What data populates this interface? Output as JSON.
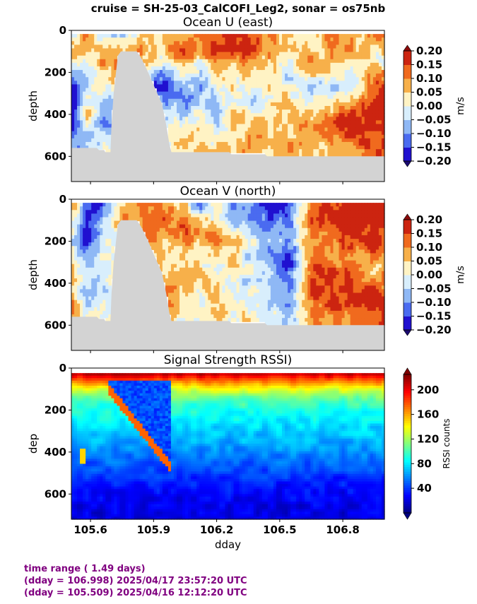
{
  "suptitle": "cruise = SH-25-03_CalCOFI_Leg2,  sonar = os75nb",
  "footer": {
    "line1": "time range ( 1.49 days)",
    "line2": "(dday = 106.998) 2025/04/17 23:57:20 UTC",
    "line3": "(dday = 105.509) 2025/04/16 12:12:20 UTC"
  },
  "colors": {
    "nodata": "#d3d3d3",
    "footer_text": "#800080"
  },
  "chart_data": [
    {
      "type": "heatmap",
      "title": "Ocean U (east)",
      "ylabel": "depth",
      "xlabel": "",
      "xlim": [
        105.509,
        106.998
      ],
      "ylim": [
        720,
        0
      ],
      "yticks": [
        0,
        200,
        400,
        600
      ],
      "xticks": [
        105.6,
        105.9,
        106.2,
        106.5,
        106.8
      ],
      "xtick_labels_visible": false,
      "colorbar": {
        "label": "m/s",
        "levels": [
          -0.2,
          -0.15,
          -0.1,
          -0.05,
          0.0,
          0.05,
          0.1,
          0.15,
          0.2
        ],
        "tick_labels": [
          "0.20",
          "0.15",
          "0.10",
          "0.05",
          "0.00",
          "−0.05",
          "−0.10",
          "−0.15",
          "−0.20"
        ],
        "colors": [
          "#2010d0",
          "#4a6bf0",
          "#8fb8f5",
          "#d8eefc",
          "#fff3c4",
          "#f7b04a",
          "#f06a1e",
          "#cc2410"
        ],
        "extend": "both"
      },
      "columns": [
        [
          105.52,
          0.0,
          0.1,
          0.05,
          -0.1,
          -0.2,
          -0.2,
          -0.15,
          -0.15,
          -0.1,
          -0.1
        ],
        [
          105.58,
          0.1,
          0.05,
          0.0,
          -0.05,
          -0.05,
          0.0,
          0.05,
          0.0,
          -0.05,
          -0.1
        ],
        [
          105.65,
          -0.05,
          0.05,
          0.1,
          0.05,
          0.0,
          -0.05,
          -0.05,
          -0.1,
          -0.05,
          0.0
        ],
        [
          105.75,
          -0.05,
          0.05,
          0.1,
          0.05,
          0.0,
          -0.05,
          -0.05,
          -0.1,
          -0.05,
          0.0
        ],
        [
          105.85,
          0.05,
          0.1,
          0.05,
          -0.05,
          -0.15,
          -0.05,
          0.0,
          0.0,
          0.0,
          0.0
        ],
        [
          105.95,
          0.05,
          0.05,
          0.0,
          -0.1,
          -0.2,
          -0.1,
          -0.05,
          0.0,
          0.0,
          0.0
        ],
        [
          106.05,
          0.1,
          0.15,
          0.1,
          0.05,
          -0.05,
          -0.1,
          -0.05,
          0.0,
          0.05,
          0.05
        ],
        [
          106.12,
          0.1,
          0.1,
          0.0,
          -0.05,
          -0.1,
          -0.05,
          0.0,
          0.05,
          0.05,
          0.05
        ],
        [
          106.2,
          0.15,
          0.2,
          0.1,
          0.05,
          0.0,
          -0.05,
          -0.1,
          -0.05,
          0.0,
          0.05
        ],
        [
          106.28,
          0.2,
          0.15,
          0.05,
          0.0,
          0.05,
          0.0,
          0.05,
          0.05,
          0.0,
          0.05
        ],
        [
          106.35,
          0.15,
          0.2,
          0.1,
          0.05,
          0.0,
          -0.05,
          0.0,
          0.05,
          0.1,
          0.1
        ],
        [
          106.45,
          0.1,
          0.1,
          0.05,
          0.05,
          0.05,
          0.0,
          0.05,
          0.05,
          0.05,
          0.05
        ],
        [
          106.55,
          0.05,
          0.05,
          0.0,
          -0.05,
          0.0,
          0.05,
          0.05,
          0.05,
          0.05,
          0.1
        ],
        [
          106.65,
          0.0,
          0.05,
          0.1,
          0.05,
          -0.05,
          0.0,
          0.05,
          0.1,
          0.05,
          0.05
        ],
        [
          106.75,
          0.15,
          0.1,
          0.05,
          0.0,
          -0.05,
          0.0,
          0.1,
          0.15,
          0.1,
          0.05
        ],
        [
          106.85,
          0.05,
          0.1,
          0.05,
          0.0,
          -0.05,
          0.05,
          0.15,
          0.2,
          0.15,
          0.1
        ],
        [
          106.95,
          0.1,
          0.05,
          0.0,
          0.1,
          0.15,
          0.2,
          0.2,
          0.15,
          0.15,
          0.15
        ]
      ],
      "row_depths": [
        30,
        90,
        150,
        210,
        270,
        330,
        390,
        450,
        510,
        570
      ],
      "nodata_profile": [
        [
          105.509,
          560
        ],
        [
          105.63,
          560
        ],
        [
          105.64,
          570
        ],
        [
          105.665,
          570
        ],
        [
          105.67,
          580
        ],
        [
          105.695,
          580
        ],
        [
          105.7,
          450
        ],
        [
          105.71,
          300
        ],
        [
          105.73,
          120
        ],
        [
          105.745,
          100
        ],
        [
          105.82,
          100
        ],
        [
          105.84,
          130
        ],
        [
          105.87,
          190
        ],
        [
          105.9,
          260
        ],
        [
          105.94,
          350
        ],
        [
          105.96,
          450
        ],
        [
          105.975,
          540
        ],
        [
          105.985,
          580
        ],
        [
          106.26,
          580
        ],
        [
          106.27,
          590
        ],
        [
          106.43,
          590
        ],
        [
          106.44,
          600
        ],
        [
          106.998,
          600
        ]
      ]
    },
    {
      "type": "heatmap",
      "title": "Ocean V (north)",
      "ylabel": "depth",
      "xlabel": "",
      "xlim": [
        105.509,
        106.998
      ],
      "ylim": [
        720,
        0
      ],
      "yticks": [
        0,
        200,
        400,
        600
      ],
      "xticks": [
        105.6,
        105.9,
        106.2,
        106.5,
        106.8
      ],
      "xtick_labels_visible": false,
      "colorbar": {
        "label": "m/s",
        "levels": [
          -0.2,
          -0.15,
          -0.1,
          -0.05,
          0.0,
          0.05,
          0.1,
          0.15,
          0.2
        ],
        "tick_labels": [
          "0.20",
          "0.15",
          "0.10",
          "0.05",
          "0.00",
          "−0.05",
          "−0.10",
          "−0.15",
          "−0.20"
        ],
        "colors": [
          "#2010d0",
          "#4a6bf0",
          "#8fb8f5",
          "#d8eefc",
          "#fff3c4",
          "#f7b04a",
          "#f06a1e",
          "#cc2410"
        ],
        "extend": "both"
      },
      "columns": [
        [
          105.52,
          0.1,
          0.05,
          0.0,
          -0.05,
          0.0,
          0.05,
          0.05,
          0.05,
          0.1,
          0.1
        ],
        [
          105.58,
          -0.15,
          -0.2,
          -0.2,
          -0.15,
          -0.1,
          -0.05,
          -0.05,
          -0.1,
          -0.05,
          0.0
        ],
        [
          105.65,
          -0.15,
          -0.1,
          -0.05,
          0.0,
          0.0,
          0.0,
          0.0,
          -0.05,
          0.0,
          0.0
        ],
        [
          105.75,
          0.05,
          0.1,
          0.05,
          0.0,
          0.0,
          0.0,
          0.0,
          0.0,
          0.0,
          0.0
        ],
        [
          105.85,
          0.15,
          0.1,
          0.1,
          0.1,
          0.05,
          0.1,
          0.05,
          0.0,
          0.0,
          0.0
        ],
        [
          105.95,
          0.1,
          0.15,
          0.1,
          0.05,
          0.05,
          0.05,
          0.1,
          0.1,
          0.1,
          0.1
        ],
        [
          106.05,
          0.05,
          0.1,
          0.15,
          0.1,
          0.05,
          0.05,
          0.1,
          0.05,
          0.0,
          0.0
        ],
        [
          106.12,
          -0.15,
          0.05,
          0.1,
          0.05,
          0.0,
          0.05,
          0.05,
          0.0,
          0.0,
          0.0
        ],
        [
          106.2,
          0.05,
          0.0,
          0.05,
          0.1,
          0.05,
          0.0,
          0.05,
          0.05,
          0.05,
          0.05
        ],
        [
          106.28,
          -0.1,
          -0.05,
          0.0,
          0.05,
          0.05,
          0.05,
          0.0,
          0.0,
          0.0,
          0.0
        ],
        [
          106.35,
          -0.05,
          -0.1,
          -0.05,
          0.0,
          -0.05,
          0.0,
          -0.05,
          0.0,
          0.0,
          0.05
        ],
        [
          106.45,
          -0.2,
          -0.15,
          -0.1,
          -0.05,
          -0.1,
          -0.05,
          -0.05,
          -0.05,
          -0.05,
          0.0
        ],
        [
          106.55,
          -0.15,
          -0.1,
          -0.1,
          -0.1,
          -0.15,
          -0.15,
          -0.1,
          -0.1,
          -0.1,
          -0.05
        ],
        [
          106.65,
          0.1,
          0.15,
          0.1,
          0.1,
          0.1,
          0.15,
          0.15,
          0.15,
          0.1,
          0.1
        ],
        [
          106.75,
          0.15,
          0.2,
          0.15,
          0.1,
          0.1,
          0.15,
          0.15,
          0.15,
          0.15,
          0.1
        ],
        [
          106.85,
          0.2,
          0.2,
          0.2,
          0.15,
          0.1,
          0.1,
          0.15,
          0.15,
          0.15,
          0.1
        ],
        [
          106.95,
          0.2,
          0.2,
          0.15,
          0.15,
          0.1,
          0.05,
          0.1,
          0.15,
          0.15,
          0.15
        ]
      ],
      "row_depths": [
        30,
        90,
        150,
        210,
        270,
        330,
        390,
        450,
        510,
        570
      ],
      "nodata_profile": [
        [
          105.509,
          560
        ],
        [
          105.63,
          560
        ],
        [
          105.64,
          570
        ],
        [
          105.665,
          570
        ],
        [
          105.67,
          580
        ],
        [
          105.695,
          580
        ],
        [
          105.7,
          450
        ],
        [
          105.71,
          300
        ],
        [
          105.73,
          120
        ],
        [
          105.745,
          100
        ],
        [
          105.82,
          100
        ],
        [
          105.84,
          130
        ],
        [
          105.87,
          190
        ],
        [
          105.9,
          260
        ],
        [
          105.94,
          350
        ],
        [
          105.96,
          450
        ],
        [
          105.975,
          540
        ],
        [
          105.985,
          580
        ],
        [
          106.26,
          580
        ],
        [
          106.27,
          590
        ],
        [
          106.43,
          590
        ],
        [
          106.44,
          600
        ],
        [
          106.998,
          600
        ]
      ]
    },
    {
      "type": "heatmap",
      "title": "Signal Strength RSSI)",
      "ylabel": "dep",
      "xlabel": "dday",
      "xlim": [
        105.509,
        106.998
      ],
      "ylim": [
        720,
        0
      ],
      "yticks": [
        0,
        200,
        400,
        600
      ],
      "xticks": [
        105.6,
        105.9,
        106.2,
        106.5,
        106.8
      ],
      "xtick_labels": [
        "105.6",
        "105.9",
        "106.2",
        "106.5",
        "106.8"
      ],
      "xtick_labels_visible": true,
      "colorbar": {
        "label": "RSSI counts",
        "range": [
          0,
          225
        ],
        "ticks": [
          40,
          80,
          120,
          160,
          200
        ],
        "tick_labels": [
          "200",
          "160",
          "120",
          "80",
          "40"
        ],
        "colormap": "jet",
        "extend": "both"
      },
      "depth_profile": [
        [
          25,
          215
        ],
        [
          50,
          185
        ],
        [
          75,
          160
        ],
        [
          100,
          135
        ],
        [
          130,
          115
        ],
        [
          160,
          100
        ],
        [
          200,
          90
        ],
        [
          260,
          80
        ],
        [
          330,
          70
        ],
        [
          400,
          58
        ],
        [
          460,
          48
        ],
        [
          520,
          38
        ],
        [
          600,
          28
        ],
        [
          680,
          22
        ],
        [
          720,
          20
        ]
      ],
      "features": [
        {
          "name": "bottom-echo",
          "x_range": [
            105.68,
            105.98
          ],
          "value": 175
        },
        {
          "name": "strong-patch",
          "x_range": [
            105.55,
            105.58
          ],
          "depth": 420,
          "value": 150
        }
      ]
    }
  ]
}
